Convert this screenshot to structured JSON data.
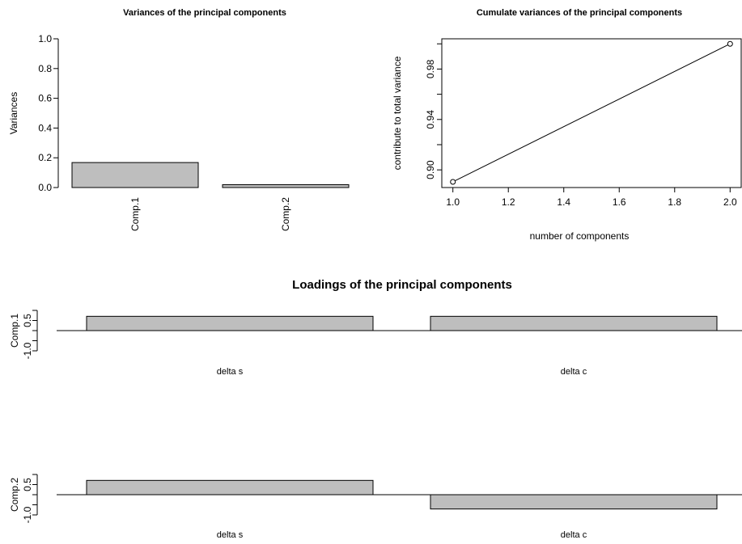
{
  "colors": {
    "bar_fill": "#bebebe",
    "stroke": "#000000",
    "background": "#ffffff"
  },
  "chart_data": [
    {
      "type": "bar",
      "title": "Variances of the principal components",
      "xlabel": "",
      "ylabel": "Variances",
      "categories": [
        "Comp.1",
        "Comp.2"
      ],
      "values": [
        0.168,
        0.019
      ],
      "ylim": [
        0,
        1
      ],
      "yticks": [
        "0.0",
        "0.2",
        "0.4",
        "0.6",
        "0.8",
        "1.0"
      ],
      "grid": false
    },
    {
      "type": "line",
      "title": "Cumulate variances of the principal components",
      "xlabel": "number of components",
      "ylabel": "contribute to total variance",
      "x": [
        1,
        2
      ],
      "y": [
        0.8905,
        1.0
      ],
      "xlim": [
        0.96,
        2.04
      ],
      "ylim": [
        0.886,
        1.004
      ],
      "xticks": [
        "1.0",
        "1.2",
        "1.4",
        "1.6",
        "1.8",
        "2.0"
      ],
      "yticks": [
        "0.90",
        "0.94",
        "0.98"
      ],
      "markers": "open-circle",
      "grid": false
    },
    {
      "type": "bar",
      "title": "Loadings of the principal components",
      "ylabel": "Comp.1",
      "categories": [
        "delta s",
        "delta c"
      ],
      "values": [
        0.707,
        0.707
      ],
      "ylim": [
        -1.0,
        1.0
      ],
      "yticks": [
        "0.5",
        "-1.0"
      ],
      "grid": false
    },
    {
      "type": "bar",
      "title": "",
      "ylabel": "Comp.2",
      "categories": [
        "delta s",
        "delta c"
      ],
      "values": [
        0.707,
        -0.707
      ],
      "ylim": [
        -1.0,
        1.0
      ],
      "yticks": [
        "0.5",
        "-1.0"
      ],
      "grid": false
    }
  ]
}
